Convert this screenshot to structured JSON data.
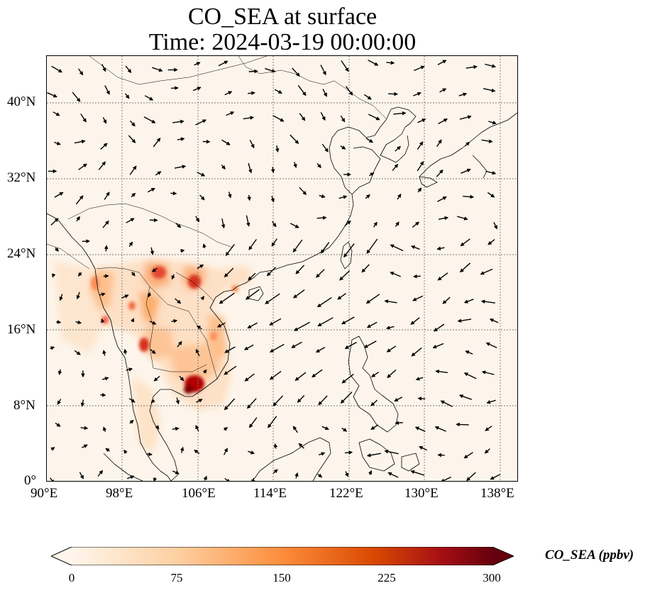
{
  "title": {
    "line1": "CO_SEA at surface",
    "line2": "Time: 2024-03-19 00:00:00"
  },
  "map": {
    "lon_range": [
      90,
      140
    ],
    "lat_range": [
      0,
      45
    ],
    "x_ticks": [
      "90°E",
      "98°E",
      "106°E",
      "114°E",
      "122°E",
      "130°E",
      "138°E"
    ],
    "y_ticks": [
      "0°",
      "8°N",
      "16°N",
      "24°N",
      "32°N",
      "40°N"
    ],
    "gridlines": true,
    "background_color": "#fdf5eb",
    "coastline_color": "#000000",
    "vector_color": "#000000"
  },
  "colorbar": {
    "label": "CO_SEA (ppbv)",
    "ticks": [
      "0",
      "75",
      "150",
      "225",
      "300"
    ],
    "range": [
      0,
      300
    ],
    "extend": "both",
    "colors": [
      "#fff5eb",
      "#fdd0a2",
      "#fd8d3c",
      "#d94801",
      "#a50f15",
      "#67000d"
    ]
  }
}
